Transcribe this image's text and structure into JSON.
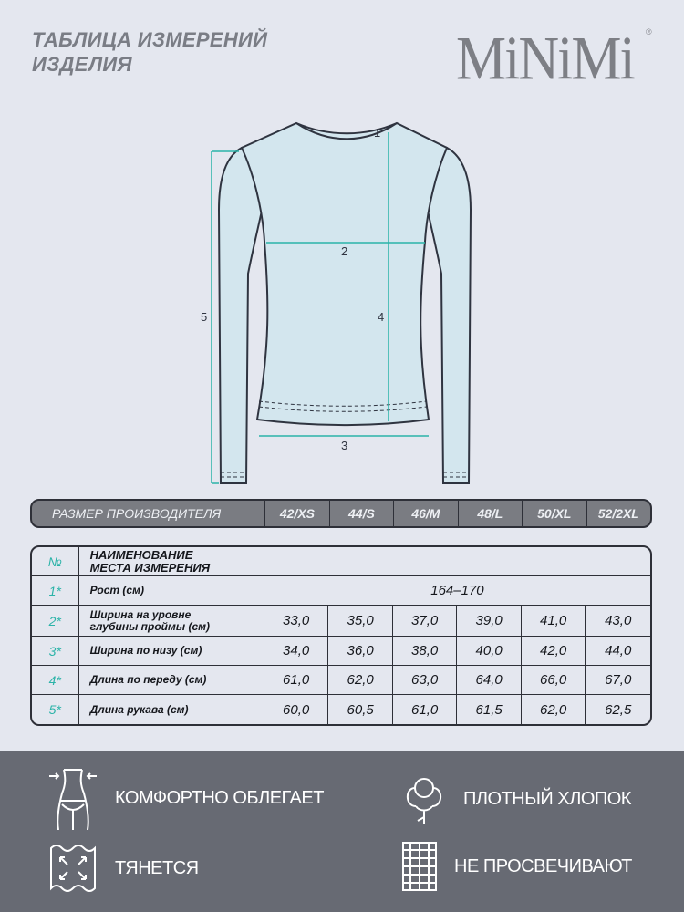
{
  "header": {
    "title_line1": "ТАБЛИЦА ИЗМЕРЕНИЙ",
    "title_line2": "ИЗДЕЛИЯ",
    "logo": "MiNiMi",
    "logo_mark": "®"
  },
  "diagram": {
    "labels": [
      "1",
      "2",
      "3",
      "4",
      "5"
    ],
    "accent": "#2bb3a8",
    "garment_fill": "#d3e6ee"
  },
  "sizes": {
    "label": "РАЗМЕР ПРОИЗВОДИТЕЛЯ",
    "values": [
      "42/XS",
      "44/S",
      "46/M",
      "48/L",
      "50/XL",
      "52/2XL"
    ]
  },
  "table": {
    "col_no": "№",
    "col_name_line1": "НАИМЕНОВАНИЕ",
    "col_name_line2": "МЕСТА ИЗМЕРЕНИЯ",
    "rows": [
      {
        "no": "1*",
        "name": "Рост (см)",
        "span_value": "164–170"
      },
      {
        "no": "2*",
        "name_line1": "Ширина на уровне",
        "name_line2": "глубины проймы (см)",
        "values": [
          "33,0",
          "35,0",
          "37,0",
          "39,0",
          "41,0",
          "43,0"
        ]
      },
      {
        "no": "3*",
        "name": "Ширина по низу (см)",
        "values": [
          "34,0",
          "36,0",
          "38,0",
          "40,0",
          "42,0",
          "44,0"
        ]
      },
      {
        "no": "4*",
        "name": "Длина по переду (см)",
        "values": [
          "61,0",
          "62,0",
          "63,0",
          "64,0",
          "66,0",
          "67,0"
        ]
      },
      {
        "no": "5*",
        "name": "Длина рукава (см)",
        "values": [
          "60,0",
          "60,5",
          "61,0",
          "61,5",
          "62,0",
          "62,5"
        ]
      }
    ]
  },
  "features": [
    {
      "icon": "body-fit-icon",
      "label": "КОМФОРТНО ОБЛЕГАЕТ"
    },
    {
      "icon": "cotton-icon",
      "label": "ПЛОТНЫЙ ХЛОПОК"
    },
    {
      "icon": "stretch-icon",
      "label": "ТЯНЕТСЯ"
    },
    {
      "icon": "weave-icon",
      "label": "НЕ ПРОСВЕЧИВАЮТ"
    }
  ]
}
